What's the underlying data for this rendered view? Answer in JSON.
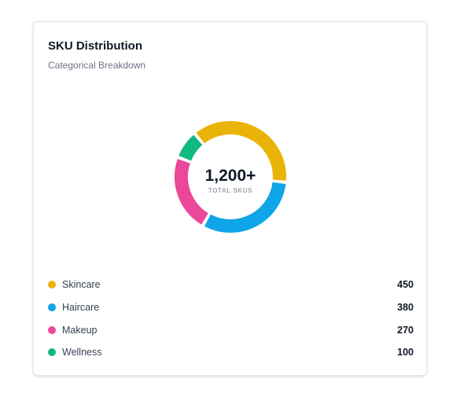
{
  "card": {
    "title": "SKU Distribution",
    "subtitle": "Categorical Breakdown"
  },
  "center": {
    "value": "1,200+",
    "label": "TOTAL SKUS"
  },
  "legend": [
    {
      "label": "Skincare",
      "value": "450",
      "color": "#eab308"
    },
    {
      "label": "Haircare",
      "value": "380",
      "color": "#0ea5e9"
    },
    {
      "label": "Makeup",
      "value": "270",
      "color": "#ec4899"
    },
    {
      "label": "Wellness",
      "value": "100",
      "color": "#10b981"
    }
  ],
  "chart_data": {
    "type": "pie",
    "title": "SKU Distribution",
    "subtitle": "Categorical Breakdown",
    "categories": [
      "Skincare",
      "Haircare",
      "Makeup",
      "Wellness"
    ],
    "values": [
      450,
      380,
      270,
      100
    ],
    "colors": [
      "#eab308",
      "#0ea5e9",
      "#ec4899",
      "#10b981"
    ],
    "legend": "bottom"
  }
}
